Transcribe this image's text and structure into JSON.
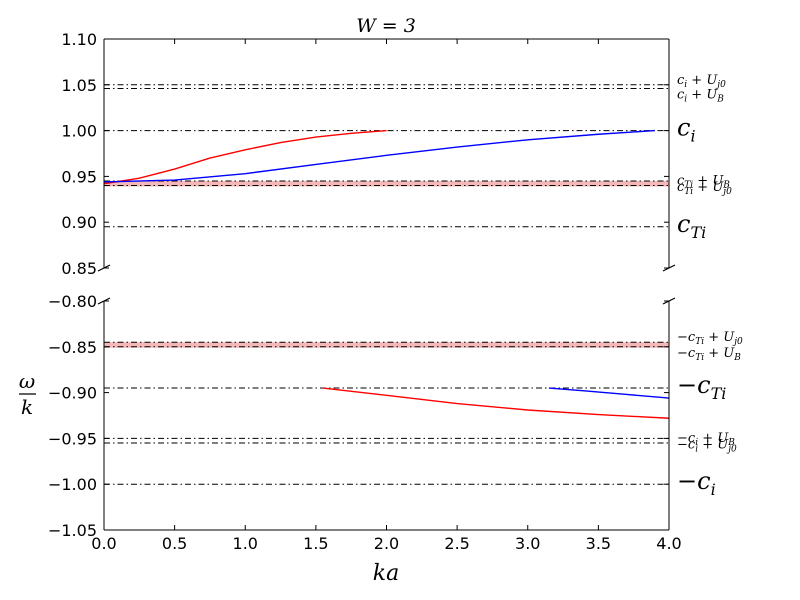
{
  "chart_data": {
    "type": "line",
    "title": "W = 3",
    "xlabel": "ka",
    "ylabel": {
      "numerator": "ω",
      "denominator": "k"
    },
    "xlim": [
      0.0,
      4.0
    ],
    "x_ticks": [
      "0.0",
      "0.5",
      "1.0",
      "1.5",
      "2.0",
      "2.5",
      "3.0",
      "3.5",
      "4.0"
    ],
    "x_tick_values": [
      0.0,
      0.5,
      1.0,
      1.5,
      2.0,
      2.5,
      3.0,
      3.5,
      4.0
    ],
    "panels": [
      {
        "id": "upper",
        "ylim": [
          0.85,
          1.1
        ],
        "y_ticks": [
          "1.10",
          "1.05",
          "1.00",
          "0.95",
          "0.90",
          "0.85"
        ],
        "y_tick_values": [
          1.1,
          1.05,
          1.0,
          0.95,
          0.9,
          0.85
        ],
        "bands": [
          {
            "y0": 0.939,
            "y1": 0.945,
            "color": "#f5b8b8"
          }
        ],
        "reference_lines": [
          {
            "y": 1.05,
            "label": "c_i + U_j0",
            "main": "c",
            "sub": "i",
            "rest": " + U",
            "rsub": "j0",
            "size": "small"
          },
          {
            "y": 1.046,
            "label": "c_i + U_B",
            "main": "c",
            "sub": "i",
            "rest": " + U",
            "rsub": "B",
            "size": "small"
          },
          {
            "y": 1.0,
            "label": "c_i",
            "main": "c",
            "sub": "i",
            "rest": "",
            "rsub": "",
            "size": "large"
          },
          {
            "y": 0.945,
            "label": "c_Ti + U_j0",
            "main": "c",
            "sub": "Ti",
            "rest": " + U",
            "rsub": "j0",
            "size": "small"
          },
          {
            "y": 0.94,
            "label": "c_Ti + U_B",
            "main": "c",
            "sub": "Ti",
            "rest": " + U",
            "rsub": "B",
            "size": "small"
          },
          {
            "y": 0.895,
            "label": "c_Ti",
            "main": "c",
            "sub": "Ti",
            "rest": "",
            "rsub": "",
            "size": "large"
          }
        ],
        "series": [
          {
            "color": "#ff0000",
            "x": [
              0.0,
              0.25,
              0.5,
              0.75,
              1.0,
              1.25,
              1.5,
              1.75,
              2.0
            ],
            "y": [
              0.942,
              0.948,
              0.958,
              0.97,
              0.979,
              0.987,
              0.993,
              0.997,
              1.0
            ]
          },
          {
            "color": "#0000ff",
            "x": [
              0.0,
              0.5,
              1.0,
              1.5,
              2.0,
              2.5,
              3.0,
              3.5,
              3.9
            ],
            "y": [
              0.944,
              0.946,
              0.953,
              0.963,
              0.973,
              0.982,
              0.99,
              0.996,
              1.0
            ]
          }
        ]
      },
      {
        "id": "lower",
        "ylim": [
          -1.05,
          -0.8
        ],
        "y_ticks": [
          "−0.80",
          "−0.85",
          "−0.90",
          "−0.95",
          "−1.00",
          "−1.05"
        ],
        "y_tick_values": [
          -0.8,
          -0.85,
          -0.9,
          -0.95,
          -1.0,
          -1.05
        ],
        "bands": [
          {
            "y0": -0.851,
            "y1": -0.845,
            "color": "#f5b8b8"
          }
        ],
        "reference_lines": [
          {
            "y": -0.845,
            "label": "−c_Ti + U_j0",
            "main": "−c",
            "sub": "Ti",
            "rest": " + U",
            "rsub": "j0",
            "size": "small"
          },
          {
            "y": -0.85,
            "label": "−c_Ti + U_B",
            "main": "−c",
            "sub": "Ti",
            "rest": " + U",
            "rsub": "B",
            "size": "small"
          },
          {
            "y": -0.895,
            "label": "−c_Ti",
            "main": "−c",
            "sub": "Ti",
            "rest": "",
            "rsub": "",
            "size": "large"
          },
          {
            "y": -0.95,
            "label": "−c_i + U_j0",
            "main": "−c",
            "sub": "i",
            "rest": " + U",
            "rsub": "j0",
            "size": "small"
          },
          {
            "y": -0.955,
            "label": "−c_i + U_B",
            "main": "−c",
            "sub": "i",
            "rest": " + U",
            "rsub": "B",
            "size": "small"
          },
          {
            "y": -1.0,
            "label": "−c_i",
            "main": "−c",
            "sub": "i",
            "rest": "",
            "rsub": "",
            "size": "large"
          }
        ],
        "series": [
          {
            "color": "#ff0000",
            "x": [
              1.55,
              2.0,
              2.5,
              3.0,
              3.5,
              4.0
            ],
            "y": [
              -0.895,
              -0.903,
              -0.912,
              -0.919,
              -0.924,
              -0.928
            ]
          },
          {
            "color": "#0000ff",
            "x": [
              3.15,
              3.4,
              3.7,
              4.0
            ],
            "y": [
              -0.895,
              -0.898,
              -0.902,
              -0.906
            ]
          }
        ]
      }
    ]
  }
}
